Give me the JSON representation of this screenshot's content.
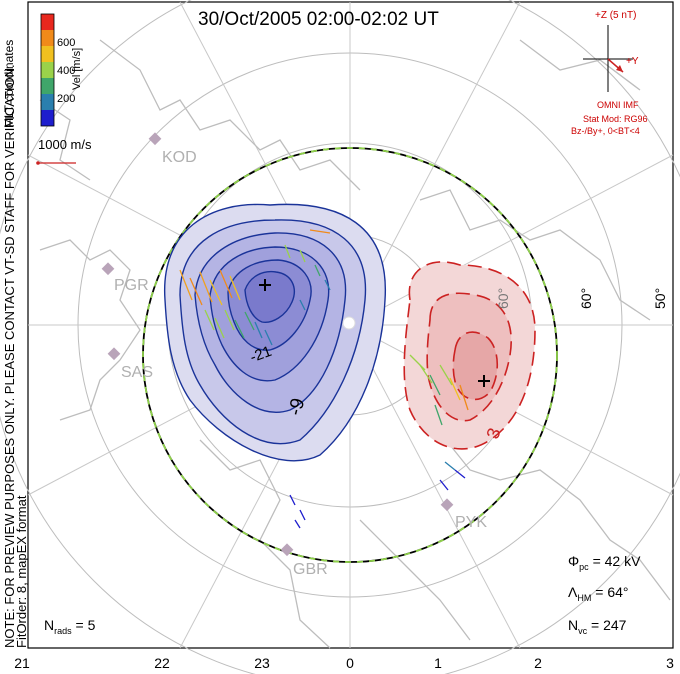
{
  "title": "30/Oct/2005 02:00-02:02 UT",
  "colorbar": {
    "label": "Vel [m/s]",
    "ticks": [
      "600",
      "400",
      "200"
    ],
    "colors": [
      "#e8281e",
      "#f08a1a",
      "#f0c020",
      "#9ad24a",
      "#3fa66a",
      "#2a7fae",
      "#1e1ecd"
    ]
  },
  "coordinates_label": "MLT coordinates",
  "side_note": "NOTE: FOR PREVIEW PURPOSES ONLY. PLEASE CONTACT VT-SD STAFF FOR VERIFICATION.",
  "fit_note": "FitOrder: 8, mapEX format",
  "scale": {
    "label": "1000 m/s"
  },
  "imf": {
    "z_label": "+Z (5 nT)",
    "y_label": "+Y",
    "source": "OMNI IMF",
    "stat_mod": "Stat Mod: RG96",
    "condition": "Bz-/By+, 0<BT<4"
  },
  "stations": [
    "KOD",
    "PGR",
    "SAS",
    "GBR",
    "PYK"
  ],
  "latitude_labels": [
    "60°",
    "50°",
    "60°"
  ],
  "contour_labels": [
    "-21",
    "-9",
    "+",
    "3"
  ],
  "stats": {
    "phi_label": "Φ",
    "phi_sub": "pc",
    "phi_value": "= 42 kV",
    "lam_label": "Λ",
    "lam_sub": "HM",
    "lam_value": "= 64°",
    "nvc_label": "N",
    "nvc_sub": "vc",
    "nvc_value": "= 247"
  },
  "nrads": {
    "label": "N",
    "sub": "rads",
    "value": "= 5"
  },
  "mlt_axis": [
    "21",
    "22",
    "23",
    "0",
    "1",
    "2",
    "3"
  ]
}
